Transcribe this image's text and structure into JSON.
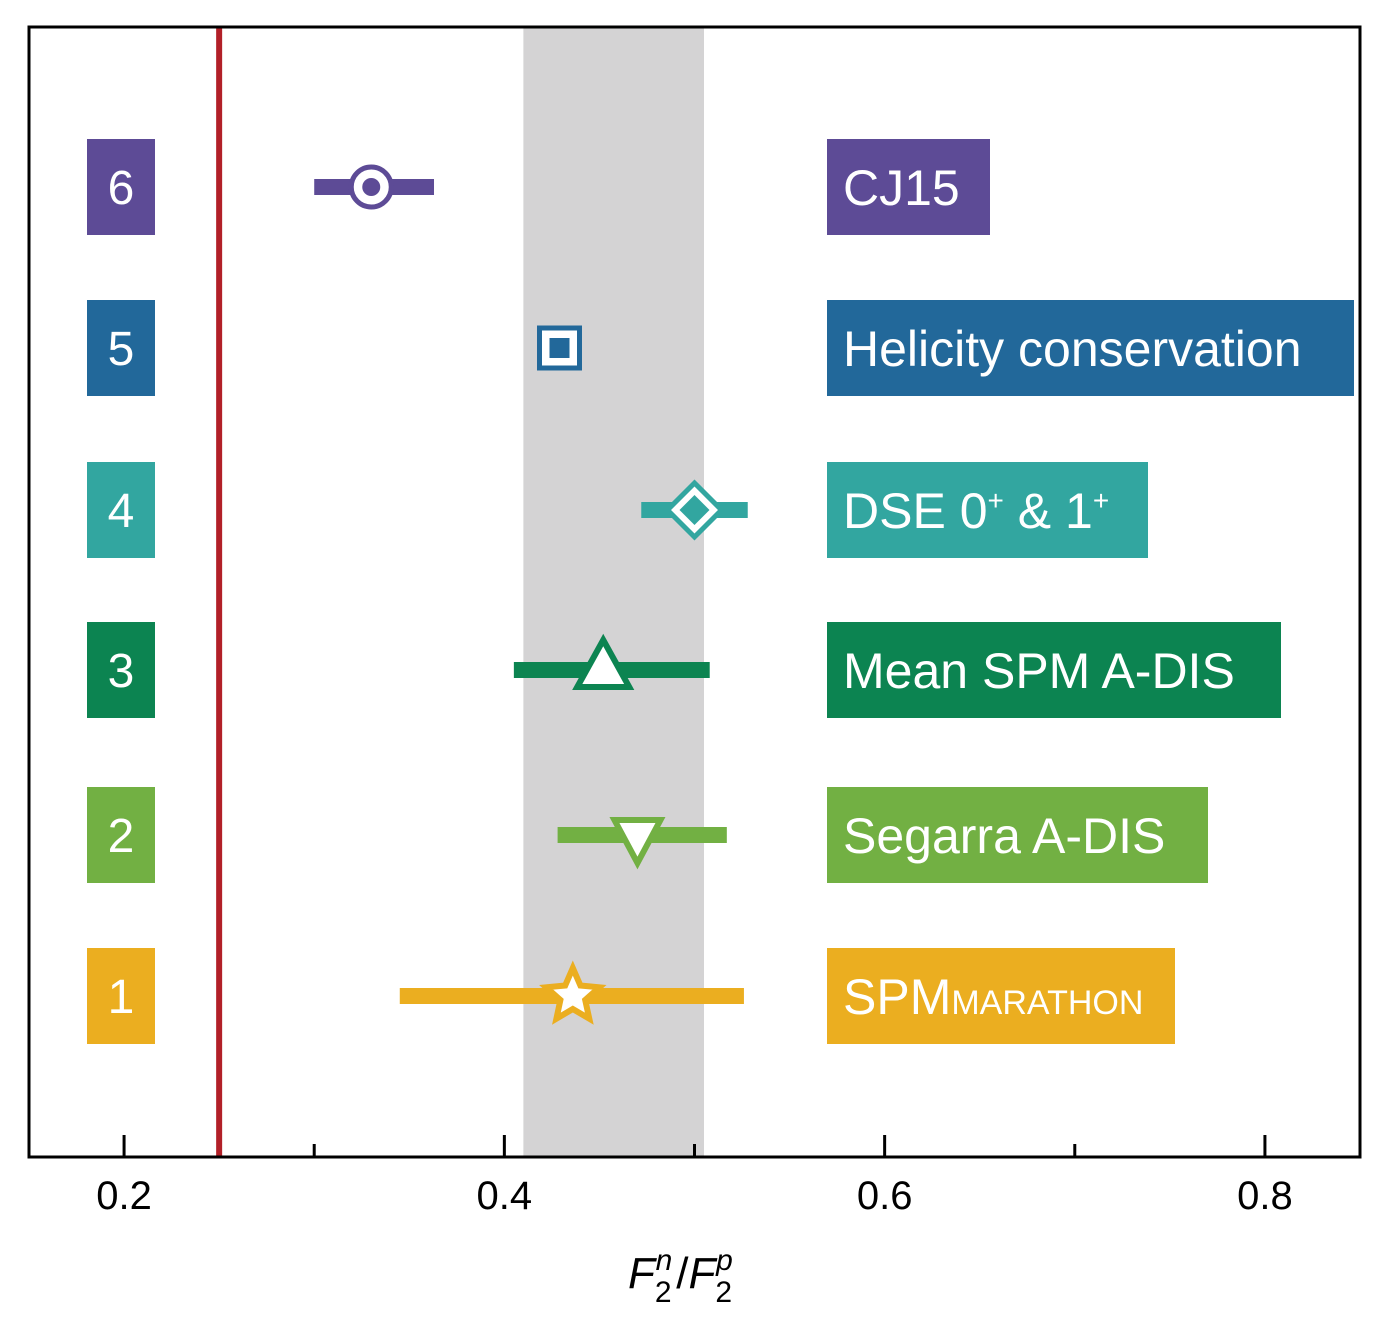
{
  "chart_data": {
    "type": "scatter",
    "subtype": "forest-plot",
    "title": "",
    "xlabel": "F2n/F2p",
    "xlabel_parts": {
      "f1": "F",
      "sub1": "2",
      "sup1": "n",
      "slash": "/",
      "f2": "F",
      "sub2": "2",
      "sup2": "p"
    },
    "ylabel": "",
    "xlim": [
      0.15,
      0.85
    ],
    "x_ticks": [
      {
        "value": 0.2,
        "label": "0.2"
      },
      {
        "value": 0.4,
        "label": "0.4"
      },
      {
        "value": 0.6,
        "label": "0.6"
      },
      {
        "value": 0.8,
        "label": "0.8"
      }
    ],
    "x_minor_ticks": [
      0.3,
      0.5,
      0.7
    ],
    "reference_line": {
      "x": 0.25,
      "color": "#b22028"
    },
    "band": {
      "x_min": 0.41,
      "x_max": 0.505,
      "color": "#d4d3d4"
    },
    "grid": false,
    "rows": [
      {
        "index": "6",
        "name": "CJ15",
        "name_suffix": "",
        "name_sup1": "",
        "name_sup2": "",
        "value": 0.33,
        "err_low": 0.3,
        "err_high": 0.363,
        "marker": "circle",
        "color": "#5d4b96"
      },
      {
        "index": "5",
        "name": "Helicity conservation",
        "name_suffix": "",
        "name_sup1": "",
        "name_sup2": "",
        "value": 0.429,
        "err_low": 0.429,
        "err_high": 0.429,
        "marker": "square",
        "color": "#22689a"
      },
      {
        "index": "4",
        "name": "DSE 0",
        "name_mid": " & 1",
        "name_suffix": "",
        "name_sup1": "+",
        "name_sup2": "+",
        "value": 0.5,
        "err_low": 0.472,
        "err_high": 0.528,
        "marker": "diamond",
        "color": "#32a6a0"
      },
      {
        "index": "3",
        "name": "Mean SPM A-DIS",
        "name_suffix": "",
        "name_sup1": "",
        "name_sup2": "",
        "value": 0.452,
        "err_low": 0.405,
        "err_high": 0.508,
        "marker": "triangle-up",
        "color": "#0c8451"
      },
      {
        "index": "2",
        "name": "Segarra A-DIS",
        "name_suffix": "",
        "name_sup1": "",
        "name_sup2": "",
        "value": 0.47,
        "err_low": 0.428,
        "err_high": 0.517,
        "marker": "triangle-down",
        "color": "#72b043"
      },
      {
        "index": "1",
        "name": "SPM",
        "name_suffix": "MARATHON",
        "name_sup1": "",
        "name_sup2": "",
        "value": 0.436,
        "err_low": 0.345,
        "err_high": 0.526,
        "marker": "star",
        "color": "#ebae20"
      }
    ]
  }
}
